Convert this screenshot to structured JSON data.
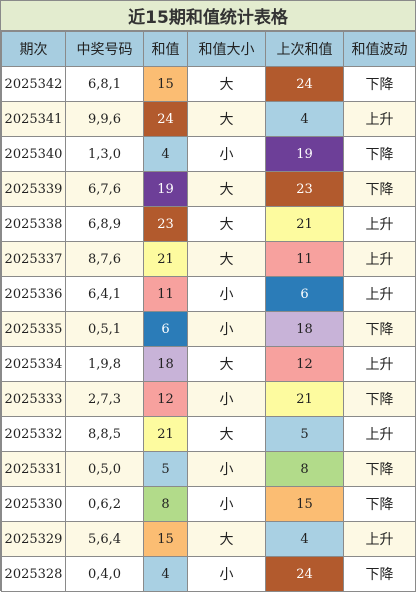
{
  "title": "近15期和值统计表格",
  "headers": [
    "期次",
    "中奖号码",
    "和值",
    "和值大小",
    "上次和值",
    "和值波动"
  ],
  "colors": {
    "4": "#a9d0e3",
    "5": "#a9d0e3",
    "6": "#2b7cb8",
    "8": "#b2db8a",
    "11": "#f7a19e",
    "12": "#f7a19e",
    "15": "#fbbd73",
    "18": "#c8b3d8",
    "19": "#6d3f98",
    "21": "#fdfb9f",
    "23": "#b25a2d",
    "24": "#b25a2d"
  },
  "light_text_values": [
    "6",
    "19",
    "23",
    "24"
  ],
  "rows": [
    {
      "period": "2025342",
      "numbers": "6,8,1",
      "sum": "15",
      "size": "大",
      "prev_sum": "24",
      "trend": "下降"
    },
    {
      "period": "2025341",
      "numbers": "9,9,6",
      "sum": "24",
      "size": "大",
      "prev_sum": "4",
      "trend": "上升"
    },
    {
      "period": "2025340",
      "numbers": "1,3,0",
      "sum": "4",
      "size": "小",
      "prev_sum": "19",
      "trend": "下降"
    },
    {
      "period": "2025339",
      "numbers": "6,7,6",
      "sum": "19",
      "size": "大",
      "prev_sum": "23",
      "trend": "下降"
    },
    {
      "period": "2025338",
      "numbers": "6,8,9",
      "sum": "23",
      "size": "大",
      "prev_sum": "21",
      "trend": "上升"
    },
    {
      "period": "2025337",
      "numbers": "8,7,6",
      "sum": "21",
      "size": "大",
      "prev_sum": "11",
      "trend": "上升"
    },
    {
      "period": "2025336",
      "numbers": "6,4,1",
      "sum": "11",
      "size": "小",
      "prev_sum": "6",
      "trend": "上升"
    },
    {
      "period": "2025335",
      "numbers": "0,5,1",
      "sum": "6",
      "size": "小",
      "prev_sum": "18",
      "trend": "下降"
    },
    {
      "period": "2025334",
      "numbers": "1,9,8",
      "sum": "18",
      "size": "大",
      "prev_sum": "12",
      "trend": "上升"
    },
    {
      "period": "2025333",
      "numbers": "2,7,3",
      "sum": "12",
      "size": "小",
      "prev_sum": "21",
      "trend": "下降"
    },
    {
      "period": "2025332",
      "numbers": "8,8,5",
      "sum": "21",
      "size": "大",
      "prev_sum": "5",
      "trend": "上升"
    },
    {
      "period": "2025331",
      "numbers": "0,5,0",
      "sum": "5",
      "size": "小",
      "prev_sum": "8",
      "trend": "下降"
    },
    {
      "period": "2025330",
      "numbers": "0,6,2",
      "sum": "8",
      "size": "小",
      "prev_sum": "15",
      "trend": "下降"
    },
    {
      "period": "2025329",
      "numbers": "5,6,4",
      "sum": "15",
      "size": "大",
      "prev_sum": "4",
      "trend": "上升"
    },
    {
      "period": "2025328",
      "numbers": "0,4,0",
      "sum": "4",
      "size": "小",
      "prev_sum": "24",
      "trend": "下降"
    }
  ]
}
